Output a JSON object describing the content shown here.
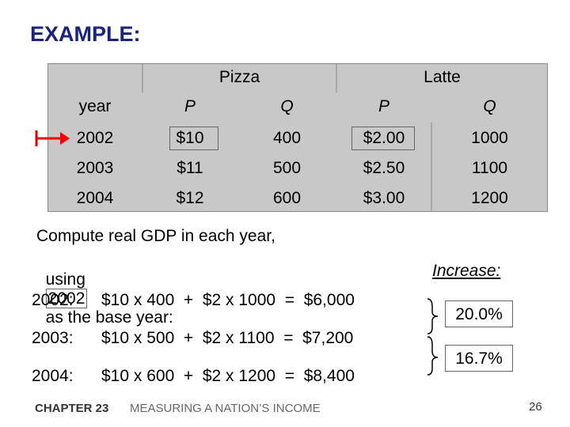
{
  "title": "EXAMPLE:",
  "table": {
    "groups": [
      "Pizza",
      "Latte"
    ],
    "columns": [
      "year",
      "P",
      "Q",
      "P",
      "Q"
    ],
    "rows": [
      [
        "2002",
        "$10",
        "400",
        "$2.00",
        "1000"
      ],
      [
        "2003",
        "$11",
        "500",
        "$2.50",
        "1100"
      ],
      [
        "2004",
        "$12",
        "600",
        "$3.00",
        "1200"
      ]
    ]
  },
  "prompt": {
    "line1": "Compute real GDP in each year,",
    "line2_start": "using",
    "base_year": "2002",
    "line2_end": "as the base year:"
  },
  "increase_label": "Increase:",
  "computations": [
    {
      "year": "2002:",
      "formula": "$10 x 400  +  $2 x 1000  =  $6,000"
    },
    {
      "year": "2003:",
      "formula": "$10 x 500  +  $2 x 1100  =  $7,200"
    },
    {
      "year": "2004:",
      "formula": "$10 x 600  +  $2 x 1200  =  $8,400"
    }
  ],
  "increases": [
    "20.0%",
    "16.7%"
  ],
  "footer": {
    "chapter": "CHAPTER 23",
    "topic": "MEASURING A NATION’S INCOME",
    "page": "26"
  }
}
